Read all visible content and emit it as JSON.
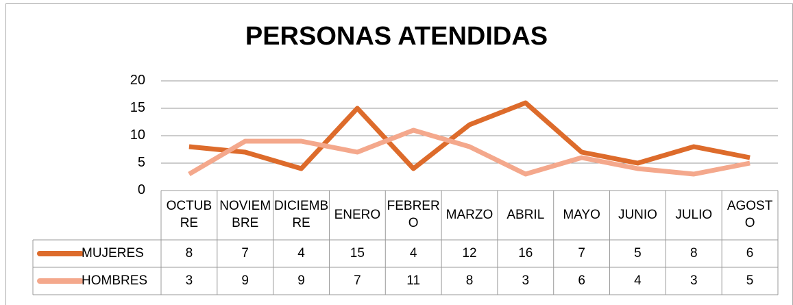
{
  "chart_data": {
    "type": "line",
    "title": "PERSONAS ATENDIDAS",
    "categories": [
      "OCTUBRE",
      "NOVIEMBRE",
      "DICIEMBRE",
      "ENERO",
      "FEBRERO",
      "MARZO",
      "ABRIL",
      "MAYO",
      "JUNIO",
      "JULIO",
      "AGOSTO"
    ],
    "series": [
      {
        "name": "MUJERES",
        "color": "#dd6b2b",
        "values": [
          8,
          7,
          4,
          15,
          4,
          12,
          16,
          7,
          5,
          8,
          6
        ]
      },
      {
        "name": "HOMBRES",
        "color": "#f4a88c",
        "values": [
          3,
          9,
          9,
          7,
          11,
          8,
          3,
          6,
          4,
          3,
          5
        ]
      }
    ],
    "ylim": [
      0,
      20
    ],
    "yticks": [
      0,
      5,
      10,
      15,
      20
    ],
    "grid": true
  }
}
